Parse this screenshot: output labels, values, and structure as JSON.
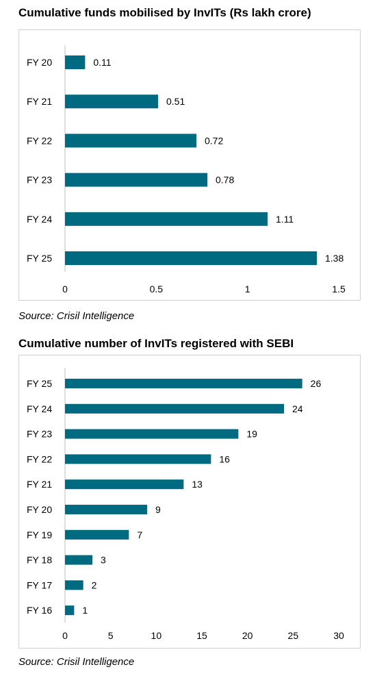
{
  "charts": [
    {
      "title": "Cumulative funds mobilised by InvITs (Rs lakh crore)",
      "source": "Source: Crisil Intelligence"
    },
    {
      "title": "Cumulative number of InvITs registered with SEBI",
      "source": "Source: Crisil Intelligence"
    }
  ],
  "colors": {
    "bar": "#006b80",
    "axis": "#bfbfbf"
  },
  "chart_data": [
    {
      "type": "bar",
      "orientation": "horizontal",
      "title": "Cumulative funds mobilised by InvITs (Rs lakh crore)",
      "categories": [
        "FY 20",
        "FY 21",
        "FY 22",
        "FY 23",
        "FY 24",
        "FY 25"
      ],
      "values": [
        0.11,
        0.51,
        0.72,
        0.78,
        1.11,
        1.38
      ],
      "value_labels": [
        "0.11",
        "0.51",
        "0.72",
        "0.78",
        "1.11",
        "1.38"
      ],
      "xlim": [
        0,
        1.5
      ],
      "xticks": [
        0,
        0.5,
        1,
        1.5
      ],
      "xtick_labels": [
        "0",
        "0.5",
        "1",
        "1.5"
      ],
      "grid": false,
      "legend": "none"
    },
    {
      "type": "bar",
      "orientation": "horizontal",
      "title": "Cumulative number of InvITs registered with SEBI",
      "categories": [
        "FY 25",
        "FY 24",
        "FY 23",
        "FY 22",
        "FY 21",
        "FY 20",
        "FY 19",
        "FY 18",
        "FY 17",
        "FY 16"
      ],
      "values": [
        26,
        24,
        19,
        16,
        13,
        9,
        7,
        3,
        2,
        1
      ],
      "value_labels": [
        "26",
        "24",
        "19",
        "16",
        "13",
        "9",
        "7",
        "3",
        "2",
        "1"
      ],
      "xlim": [
        0,
        30
      ],
      "xticks": [
        0,
        5,
        10,
        15,
        20,
        25,
        30
      ],
      "xtick_labels": [
        "0",
        "5",
        "10",
        "15",
        "20",
        "25",
        "30"
      ],
      "grid": false,
      "legend": "none"
    }
  ]
}
